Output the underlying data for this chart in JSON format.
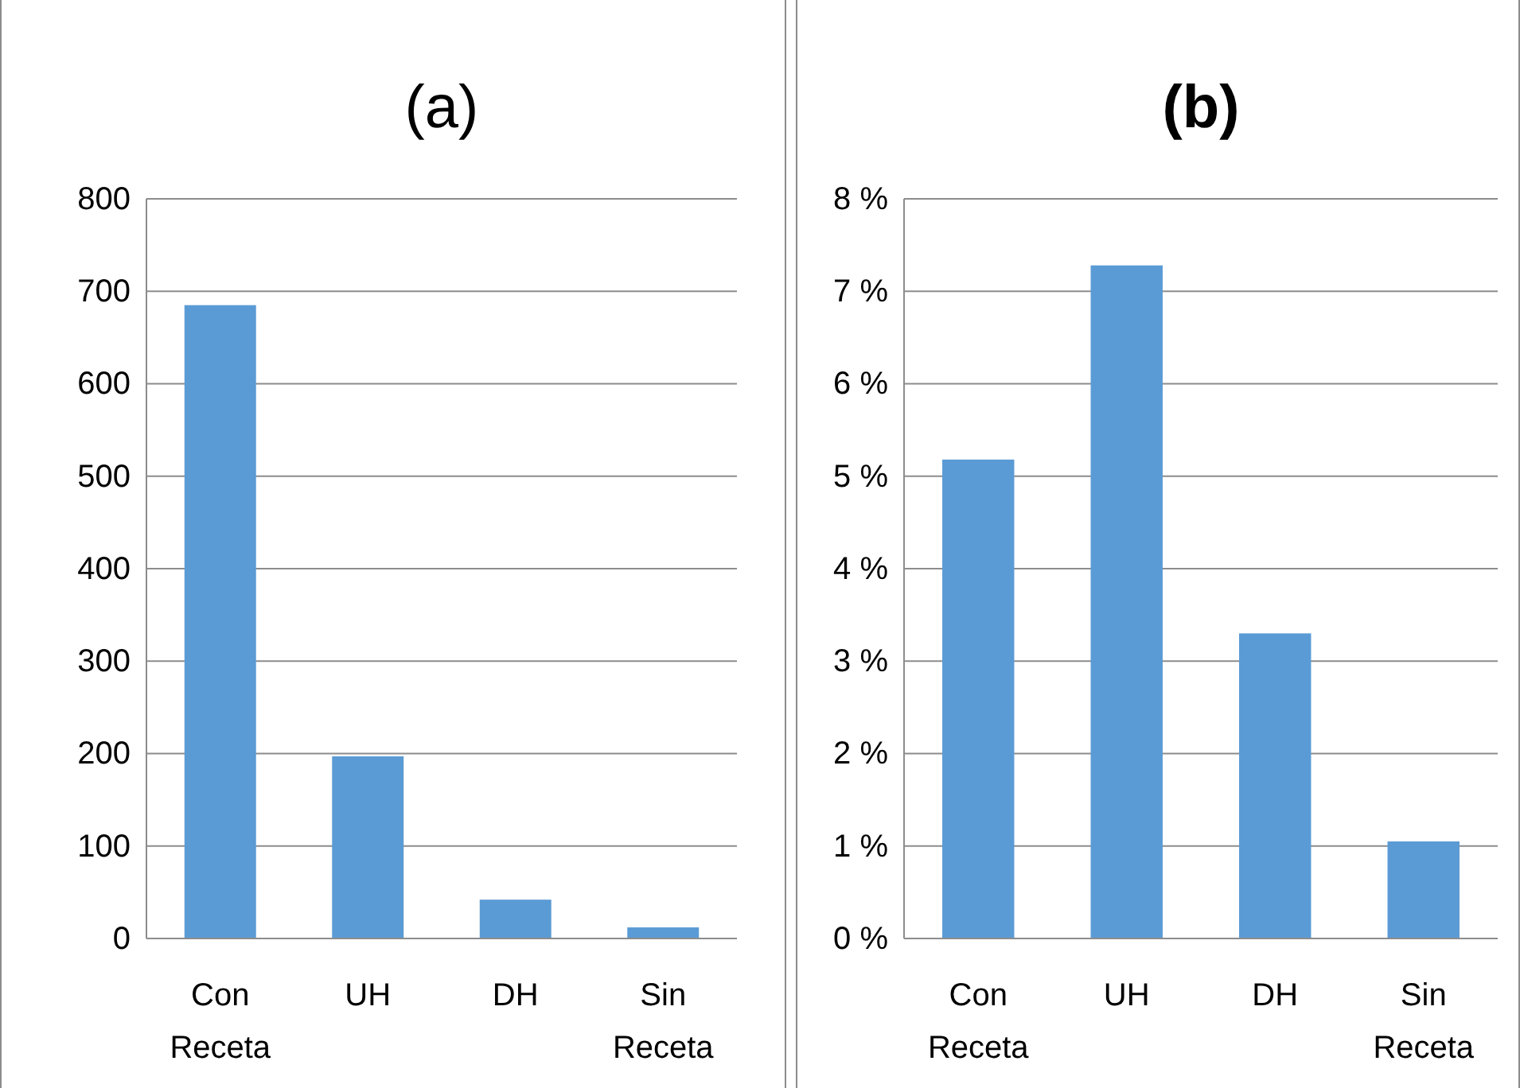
{
  "chart_data": [
    {
      "type": "bar",
      "title": "(a)",
      "categories": [
        "Con Receta",
        "UH",
        "DH",
        "Sin Receta"
      ],
      "values": [
        685,
        197,
        42,
        12
      ],
      "color": "#5b9bd5",
      "ylim": [
        0,
        800
      ],
      "yticks": [
        0,
        100,
        200,
        300,
        400,
        500,
        600,
        700,
        800
      ],
      "grid": "y"
    },
    {
      "type": "bar",
      "title": "(b)",
      "categories": [
        "Con Receta",
        "UH",
        "DH",
        "Sin Receta"
      ],
      "values": [
        5.18,
        7.28,
        3.3,
        1.05
      ],
      "color": "#5b9bd5",
      "ylim": [
        0,
        8
      ],
      "yticks": [
        {
          "value": 0,
          "label": "0 %"
        },
        {
          "value": 1,
          "label": "1 %"
        },
        {
          "value": 2,
          "label": "2 %"
        },
        {
          "value": 3,
          "label": "3 %"
        },
        {
          "value": 4,
          "label": "4 %"
        },
        {
          "value": 5,
          "label": "5 %"
        },
        {
          "value": 6,
          "label": "6 %"
        },
        {
          "value": 7,
          "label": "7 %"
        },
        {
          "value": 8,
          "label": "8 %"
        }
      ],
      "grid": "y"
    }
  ]
}
